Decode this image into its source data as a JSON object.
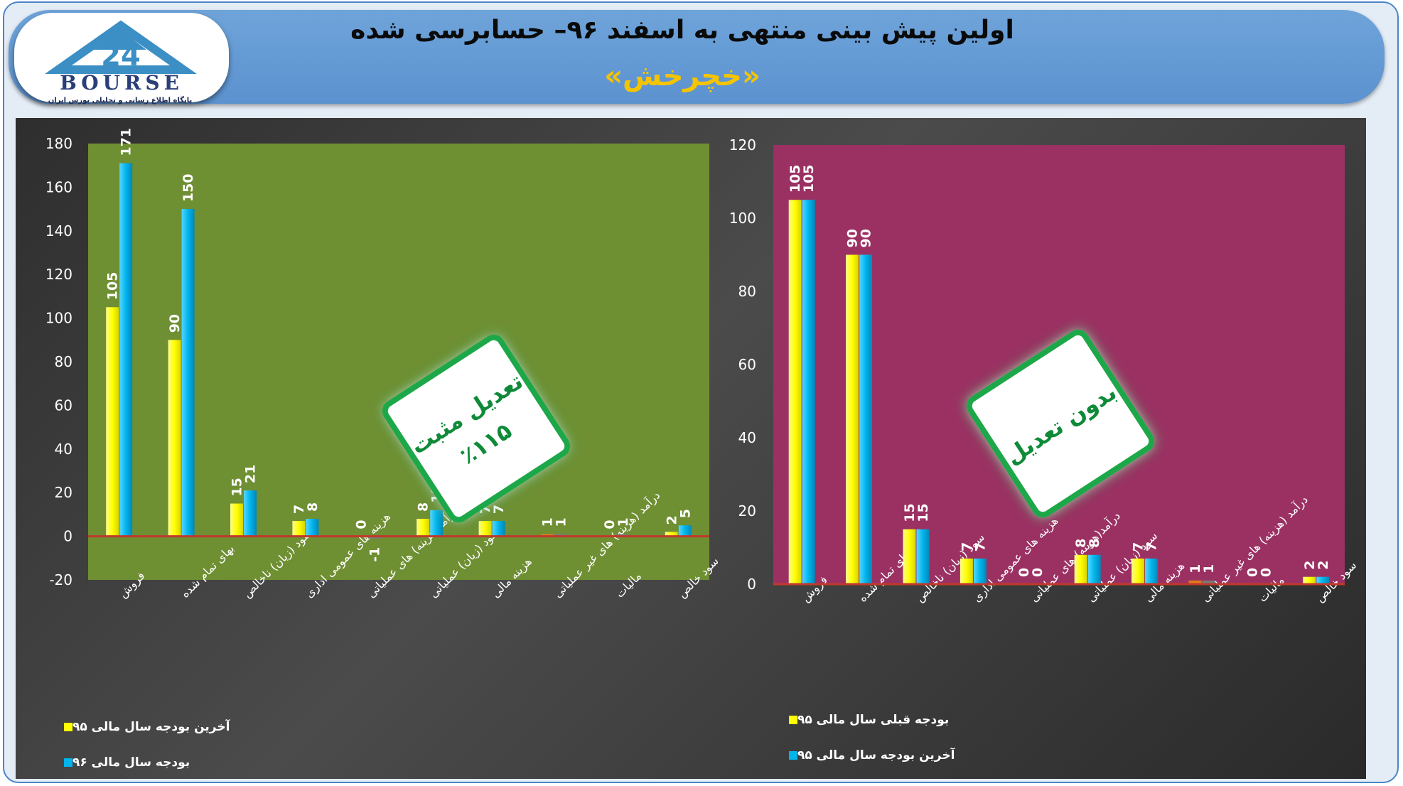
{
  "header": {
    "title": "اولین پیش بینی منتهی به اسفند ۹۶– حسابرسی شده",
    "subtitle": "«خچرخش»",
    "logo_word": "BOURSE",
    "logo_subtitle": "پایگاه اطلاع رسانی و تحلیلی بورس ایران"
  },
  "colors": {
    "yellow": "#ffff00",
    "cyan": "#00b4ec",
    "left_plot_bg": "#6f8f33",
    "right_plot_bg": "#9b3163",
    "zero_line": "#c0392b",
    "badge_border": "#1ea84a",
    "badge_text": "#0f8a38"
  },
  "badges": {
    "left": {
      "line1": "تعدیل مثبت",
      "line2": "٪۱۱۵"
    },
    "right": {
      "line1": "بدون تعدیل"
    }
  },
  "chart_data": [
    {
      "type": "bar",
      "id": "left",
      "categories": [
        "فروش",
        "بهای تمام شده",
        "سود (زیان) ناخالص",
        "هزینه های عمومی اداری",
        "درآمد(هزینه) های عملیاتی",
        "سود (زیان) عملیاتی",
        "هزینه مالی",
        "درآمد (هزینه) های غیر عملیاتی",
        "مالیات",
        "سود خالص"
      ],
      "series": [
        {
          "name": "آخرین بودجه سال مالی ۹۵",
          "color": "#ffff00",
          "values": [
            105,
            90,
            15,
            7,
            0,
            8,
            7,
            1,
            0,
            2
          ]
        },
        {
          "name": "بودجه سال مالی ۹۶",
          "color": "#00b4ec",
          "values": [
            171,
            150,
            21,
            8,
            -1,
            12,
            7,
            1,
            1,
            5
          ]
        }
      ],
      "ylim": [
        -20,
        180
      ],
      "yticks": [
        -20,
        0,
        20,
        40,
        60,
        80,
        100,
        120,
        140,
        160,
        180
      ],
      "legend_position": "bottom-left"
    },
    {
      "type": "bar",
      "id": "right",
      "categories": [
        "فروش",
        "بهای تمام شده",
        "سود (زیان) ناخالص",
        "هزینه های عمومی اداری",
        "درآمد(هزینه) های عملیاتی",
        "سود (زیان) عملیاتی",
        "هزینه مالی",
        "درآمد (هزینه) های غیر عملیاتی",
        "مالیات",
        "سود خالص"
      ],
      "series": [
        {
          "name": "بودجه قبلی سال مالی ۹۵",
          "color": "#ffff00",
          "values": [
            105,
            90,
            15,
            7,
            0,
            8,
            7,
            1,
            0,
            2
          ]
        },
        {
          "name": "آخرین بودجه سال مالی ۹۵",
          "color": "#00b4ec",
          "values": [
            105,
            90,
            15,
            7,
            0,
            8,
            7,
            1,
            0,
            2
          ]
        }
      ],
      "ylim": [
        0,
        120
      ],
      "yticks": [
        0,
        20,
        40,
        60,
        80,
        100,
        120
      ],
      "legend_position": "bottom-left"
    }
  ]
}
